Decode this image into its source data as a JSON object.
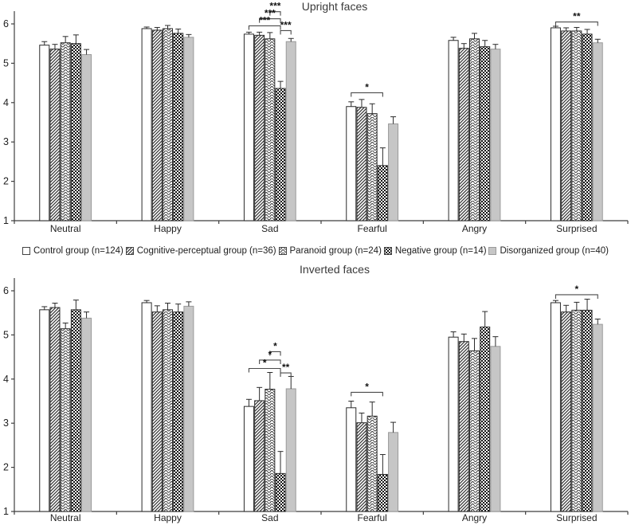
{
  "legend": {
    "items": [
      {
        "label": "Control group (n=124)",
        "pattern": "plain"
      },
      {
        "label": "Cognitive-perceptual group (n=36)",
        "pattern": "diagonal-hatch"
      },
      {
        "label": "Paranoid group (n=24)",
        "pattern": "wave"
      },
      {
        "label": "Negative group (n=14)",
        "pattern": "checker"
      },
      {
        "label": "Disorganized group (n=40)",
        "pattern": "gray"
      }
    ]
  },
  "chart_data": [
    {
      "type": "bar",
      "title": "Upright faces",
      "categories": [
        "Neutral",
        "Happy",
        "Sad",
        "Fearful",
        "Angry",
        "Surprised"
      ],
      "ylim": [
        1,
        6
      ],
      "yticks": [
        1,
        2,
        3,
        4,
        5,
        6
      ],
      "grid": false,
      "error_bars": "upper",
      "series": [
        {
          "name": "Control group (n=124)",
          "pattern": "plain",
          "values": [
            5.46,
            5.88,
            5.74,
            3.9,
            5.58,
            5.9
          ],
          "errors": [
            0.09,
            0.04,
            0.05,
            0.12,
            0.08,
            0.04
          ]
        },
        {
          "name": "Cognitive-perceptual group (n=36)",
          "pattern": "diagonal-hatch",
          "values": [
            5.36,
            5.84,
            5.71,
            3.88,
            5.38,
            5.82
          ],
          "errors": [
            0.12,
            0.07,
            0.08,
            0.2,
            0.12,
            0.08
          ]
        },
        {
          "name": "Paranoid group (n=24)",
          "pattern": "wave",
          "values": [
            5.52,
            5.88,
            5.62,
            3.72,
            5.62,
            5.82
          ],
          "errors": [
            0.16,
            0.08,
            0.16,
            0.25,
            0.14,
            0.09
          ]
        },
        {
          "name": "Negative group (n=14)",
          "pattern": "checker",
          "values": [
            5.5,
            5.76,
            4.36,
            2.4,
            5.42,
            5.74
          ],
          "errors": [
            0.22,
            0.11,
            0.18,
            0.45,
            0.16,
            0.12
          ]
        },
        {
          "name": "Disorganized group (n=40)",
          "pattern": "gray",
          "values": [
            5.22,
            5.66,
            5.55,
            3.46,
            5.36,
            5.52
          ],
          "errors": [
            0.13,
            0.07,
            0.08,
            0.18,
            0.12,
            0.09
          ]
        }
      ],
      "significance_brackets": [
        {
          "category": "Sad",
          "from_series": 2,
          "to_series": 3,
          "y": 6.31,
          "label": "***"
        },
        {
          "category": "Sad",
          "from_series": 1,
          "to_series": 3,
          "y": 6.13,
          "label": "***"
        },
        {
          "category": "Sad",
          "from_series": 0,
          "to_series": 3,
          "y": 5.95,
          "label": "***"
        },
        {
          "category": "Sad",
          "from_series": 3,
          "to_series": 4,
          "y": 5.83,
          "label": "***"
        },
        {
          "category": "Fearful",
          "from_series": 0,
          "to_series": 3,
          "y": 4.25,
          "label": "*"
        },
        {
          "category": "Surprised",
          "from_series": 0,
          "to_series": 4,
          "y": 6.05,
          "label": "**"
        }
      ]
    },
    {
      "type": "bar",
      "title": "Inverted faces",
      "categories": [
        "Neutral",
        "Happy",
        "Sad",
        "Fearful",
        "Angry",
        "Surprised"
      ],
      "ylim": [
        1,
        6
      ],
      "yticks": [
        1,
        2,
        3,
        4,
        5,
        6
      ],
      "grid": false,
      "error_bars": "upper",
      "series": [
        {
          "name": "Control group (n=124)",
          "pattern": "plain",
          "values": [
            5.57,
            5.73,
            3.38,
            3.35,
            4.95,
            5.73
          ],
          "errors": [
            0.07,
            0.05,
            0.16,
            0.15,
            0.12,
            0.05
          ]
        },
        {
          "name": "Cognitive-perceptual group (n=36)",
          "pattern": "diagonal-hatch",
          "values": [
            5.62,
            5.52,
            3.51,
            3.01,
            4.85,
            5.52
          ],
          "errors": [
            0.1,
            0.14,
            0.3,
            0.22,
            0.17,
            0.15
          ]
        },
        {
          "name": "Paranoid group (n=24)",
          "pattern": "wave",
          "values": [
            5.14,
            5.57,
            3.77,
            3.16,
            4.64,
            5.56
          ],
          "errors": [
            0.13,
            0.15,
            0.38,
            0.32,
            0.28,
            0.18
          ]
        },
        {
          "name": "Negative group (n=14)",
          "pattern": "checker",
          "values": [
            5.57,
            5.52,
            1.86,
            1.84,
            5.18,
            5.56
          ],
          "errors": [
            0.22,
            0.18,
            0.5,
            0.45,
            0.35,
            0.25
          ]
        },
        {
          "name": "Disorganized group (n=40)",
          "pattern": "gray",
          "values": [
            5.38,
            5.65,
            3.78,
            2.79,
            4.74,
            5.24
          ],
          "errors": [
            0.14,
            0.1,
            0.28,
            0.23,
            0.22,
            0.12
          ]
        }
      ],
      "significance_brackets": [
        {
          "category": "Sad",
          "from_series": 2,
          "to_series": 3,
          "y": 4.62,
          "label": "*"
        },
        {
          "category": "Sad",
          "from_series": 1,
          "to_series": 3,
          "y": 4.43,
          "label": "*"
        },
        {
          "category": "Sad",
          "from_series": 0,
          "to_series": 3,
          "y": 4.24,
          "label": "*"
        },
        {
          "category": "Sad",
          "from_series": 3,
          "to_series": 4,
          "y": 4.14,
          "label": "**"
        },
        {
          "category": "Fearful",
          "from_series": 0,
          "to_series": 3,
          "y": 3.7,
          "label": "*"
        },
        {
          "category": "Surprised",
          "from_series": 0,
          "to_series": 4,
          "y": 5.91,
          "label": "*"
        }
      ]
    }
  ]
}
